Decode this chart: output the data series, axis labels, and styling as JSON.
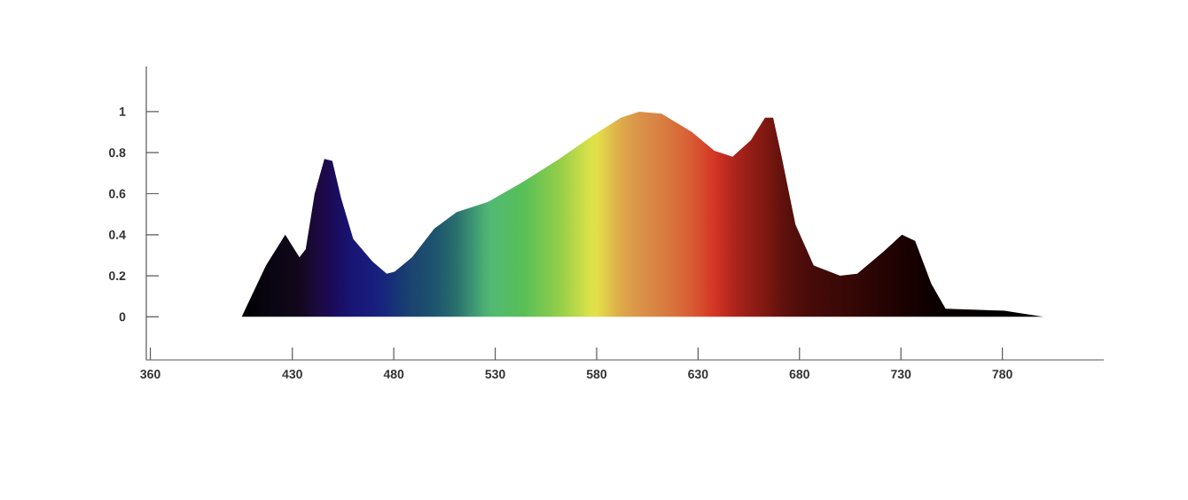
{
  "chart_data": {
    "type": "area",
    "x": [
      380,
      405,
      417,
      426.5,
      433.5,
      436.6,
      441,
      445.8,
      449.7,
      454,
      460,
      469.5,
      476.5,
      480.4,
      489,
      500,
      511,
      526.5,
      544,
      561.6,
      579,
      592,
      601,
      612,
      627,
      638,
      647,
      656,
      663,
      667,
      671,
      678,
      687,
      700,
      708.5,
      721.7,
      730.5,
      737,
      745,
      752,
      781,
      800.7
    ],
    "values": [
      0,
      0,
      0.25,
      0.4,
      0.29,
      0.33,
      0.6,
      0.77,
      0.76,
      0.58,
      0.38,
      0.27,
      0.21,
      0.22,
      0.29,
      0.43,
      0.51,
      0.56,
      0.66,
      0.77,
      0.89,
      0.97,
      1.0,
      0.99,
      0.9,
      0.81,
      0.78,
      0.86,
      0.97,
      0.97,
      0.79,
      0.45,
      0.25,
      0.2,
      0.21,
      0.32,
      0.4,
      0.37,
      0.16,
      0.04,
      0.03,
      0
    ],
    "colors": [
      "#d0d0d0",
      "#000000",
      "#0a0612",
      "#100818",
      "#14081e",
      "#180a2a",
      "#1e0c40",
      "#200a50",
      "#1e0c60",
      "#1c1070",
      "#1c1880",
      "#1a2088",
      "#182c88",
      "#1a3880",
      "#1e4a7a",
      "#205a78",
      "#2e7a78",
      "#58c880",
      "#60d060",
      "#a0e050",
      "#f8f850",
      "#f0b850",
      "#eea050",
      "#ec8a48",
      "#ea6438",
      "#e83a28",
      "#c02a20",
      "#a02018",
      "#8c1c14",
      "#7a1810",
      "#6a1410",
      "#5a100c",
      "#4c0c0a",
      "#400a08",
      "#380806",
      "#280404",
      "#200202",
      "#180202",
      "#100000",
      "#080000",
      "#000000",
      "#000000"
    ],
    "xlim": [
      358,
      830
    ],
    "ylim": [
      -0.21,
      1.22
    ],
    "xticks": [
      360,
      430,
      480,
      530,
      580,
      630,
      680,
      730,
      780
    ],
    "yticks": [
      0,
      0.2,
      0.4,
      0.6,
      0.8,
      1
    ]
  }
}
